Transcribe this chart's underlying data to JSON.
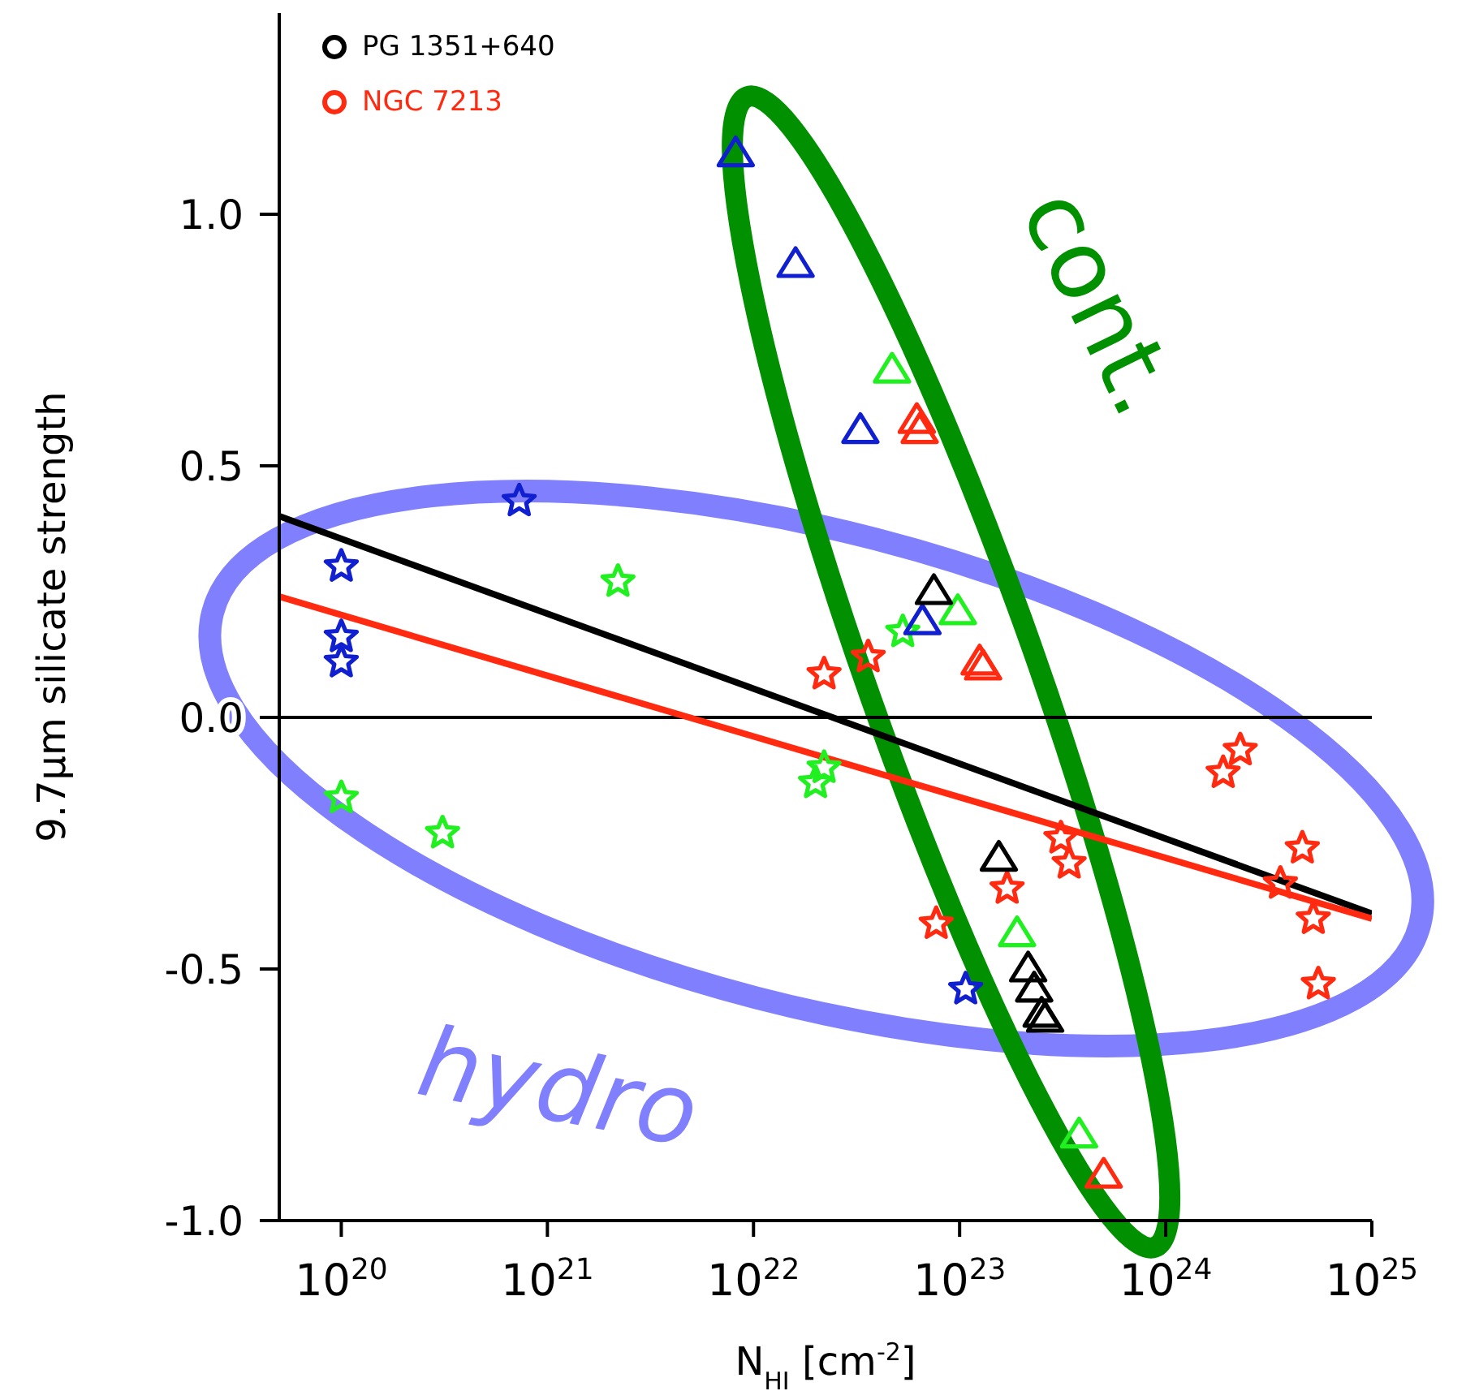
{
  "chart_data": {
    "type": "scatter",
    "xlabel": "N$_{HI}$ [cm$^{-2}$]",
    "ylabel": "9.7μm silicate strength",
    "log": "x",
    "xlim": [
      5e+19,
      1e+25
    ],
    "xticks": [
      {
        "value": 1e+20,
        "label": "10$^{20}$"
      },
      {
        "value": 1e+21,
        "label": "10$^{21}$"
      },
      {
        "value": 1e+22,
        "label": "10$^{22}$"
      },
      {
        "value": 1e+23,
        "label": "10$^{23}$"
      },
      {
        "value": 1e+24,
        "label": "10$^{24}$"
      },
      {
        "value": 1e+25,
        "label": "10$^{25}$"
      }
    ],
    "ylim": [
      -1.0,
      1.4
    ],
    "yticks": [
      {
        "value": -1.0,
        "label": "-1.0"
      },
      {
        "value": -0.5,
        "label": "-0.5"
      },
      {
        "value": 0.0,
        "label": "0.0"
      },
      {
        "value": 0.5,
        "label": "0.5"
      },
      {
        "value": 1.0,
        "label": "1.0"
      }
    ],
    "grid": false,
    "legend": "top left",
    "ref_lines": [
      {
        "axis": "y",
        "value": 0,
        "color": "#000000"
      }
    ],
    "annotations": [
      "cont.",
      "hydro"
    ],
    "series": [
      {
        "marker": "star",
        "color": "#1020d0",
        "x": [
          1e+20,
          1e+20,
          1e+20,
          7.3e+20,
          1.07e+23
        ],
        "values": [
          0.3,
          0.16,
          0.11,
          0.43,
          -0.54
        ]
      },
      {
        "marker": "star",
        "color": "#20f020",
        "x": [
          1e+20,
          3.1e+20,
          2.2e+21,
          2e+22,
          2.2e+22,
          5.3e+22
        ],
        "values": [
          -0.16,
          -0.23,
          0.27,
          -0.13,
          -0.1,
          0.17
        ]
      },
      {
        "marker": "star",
        "color": "#ff2a10",
        "x": [
          2.2e+22,
          3.6e+22,
          7.7e+22,
          1.7e+23,
          3.1e+23,
          3.4e+23,
          1.9e+24,
          2.3e+24,
          3.6e+24,
          4.6e+24,
          5.2e+24,
          5.5e+24
        ],
        "values": [
          0.086,
          0.12,
          -0.41,
          -0.34,
          -0.24,
          -0.29,
          -0.11,
          -0.065,
          -0.33,
          -0.26,
          -0.4,
          -0.53
        ]
      },
      {
        "marker": "triangle",
        "color": "#1020d0",
        "x": [
          8.2e+21,
          1.6e+22,
          3.3e+22,
          6.6e+22
        ],
        "values": [
          1.12,
          0.9,
          0.57,
          0.19
        ]
      },
      {
        "marker": "triangle",
        "color": "#20f020",
        "x": [
          4.7e+22,
          9.8e+22,
          1.9e+23,
          3.8e+23
        ],
        "values": [
          0.69,
          0.21,
          -0.43,
          -0.83
        ]
      },
      {
        "marker": "triangle",
        "color": "#ff2a10",
        "x": [
          6.2e+22,
          6.4e+22,
          1.25e+23,
          1.3e+23,
          5e+23
        ],
        "values": [
          0.59,
          0.57,
          0.11,
          0.1,
          -0.91
        ]
      },
      {
        "marker": "triangle",
        "color": "#000000",
        "x": [
          7.5e+22,
          1.55e+23,
          2.15e+23,
          2.3e+23,
          2.5e+23,
          2.6e+23
        ],
        "values": [
          0.25,
          -0.28,
          -0.5,
          -0.54,
          -0.59,
          -0.6
        ]
      },
      {
        "type": "line",
        "name": "PG 1351+640",
        "color": "#000000",
        "x": [
          5e+19,
          1e+25
        ],
        "values": [
          0.4,
          -0.39
        ]
      },
      {
        "type": "line",
        "name": "NGC 7213",
        "color": "#ff2a10",
        "x": [
          5e+19,
          1e+25
        ],
        "values": [
          0.24,
          -0.4
        ]
      }
    ]
  }
}
